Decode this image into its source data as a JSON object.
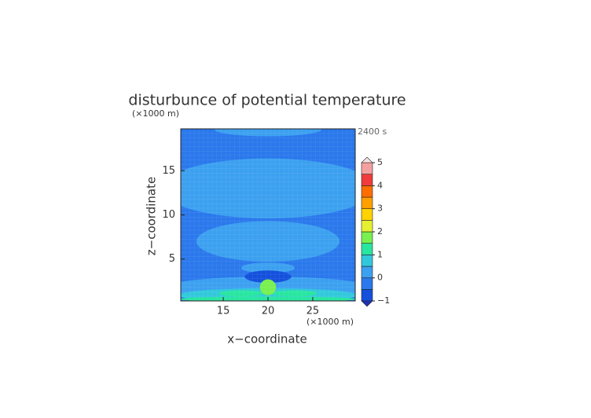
{
  "chart_data": {
    "type": "contour",
    "title": "disturbunce of potential temperature",
    "y_unit": "(×1000 m)",
    "x_unit": "(×1000 m)",
    "time_label": "2400 s",
    "xlabel": "x−coordinate",
    "ylabel": "z−coordinate",
    "xlim": [
      10.25,
      29.75
    ],
    "ylim": [
      0.25,
      19.75
    ],
    "xticks": [
      15,
      20,
      25
    ],
    "yticks": [
      5,
      10,
      15
    ],
    "background_value": -0.25,
    "regions": [
      {
        "cx": 20,
        "cy": 13,
        "rx": 12,
        "ry": 3.4,
        "value": 0.25
      },
      {
        "cx": 20,
        "cy": 7,
        "rx": 8,
        "ry": 2.3,
        "value": 0.25
      },
      {
        "cx": 20,
        "cy": 19.7,
        "rx": 6,
        "ry": 0.8,
        "value": 0.25
      },
      {
        "cx": 20,
        "cy": 4,
        "rx": 3,
        "ry": 0.6,
        "value": 0.25
      },
      {
        "cx": 20,
        "cy": 1.6,
        "rx": 12,
        "ry": 1.4,
        "value": 0.25
      },
      {
        "cx": 20,
        "cy": 3,
        "rx": 2.6,
        "ry": 0.7,
        "value": -0.75
      },
      {
        "cx": 20,
        "cy": 0.9,
        "rx": 10,
        "ry": 0.8,
        "value": 0.75
      },
      {
        "cx": 20,
        "cy": 0.45,
        "rx": 10,
        "ry": 0.3,
        "value": 1.25
      },
      {
        "cx": 17,
        "cy": 1.1,
        "rx": 2.5,
        "ry": 0.35,
        "value": 1.25
      },
      {
        "cx": 23,
        "cy": 1.1,
        "rx": 2.5,
        "ry": 0.35,
        "value": 1.25
      },
      {
        "cx": 20,
        "cy": 1.8,
        "rx": 0.9,
        "ry": 0.9,
        "value": 1.75
      }
    ],
    "levels": [
      -1,
      -0.5,
      0,
      0.5,
      1,
      1.5,
      2,
      2.5,
      3,
      3.5,
      4,
      4.5,
      5
    ],
    "colors": [
      "#1450dc",
      "#2a78ec",
      "#3ca0f0",
      "#32c8dc",
      "#28e6a0",
      "#78f050",
      "#e6f032",
      "#ffd200",
      "#ffa000",
      "#ff6e00",
      "#f03c3c",
      "#f5a0a0"
    ],
    "under_color": "#1e32b4",
    "over_color": "#f8e0e0",
    "cbar_ticks": [
      {
        "value": -1,
        "label": "−1"
      },
      0,
      1,
      2,
      3,
      4,
      5
    ]
  }
}
